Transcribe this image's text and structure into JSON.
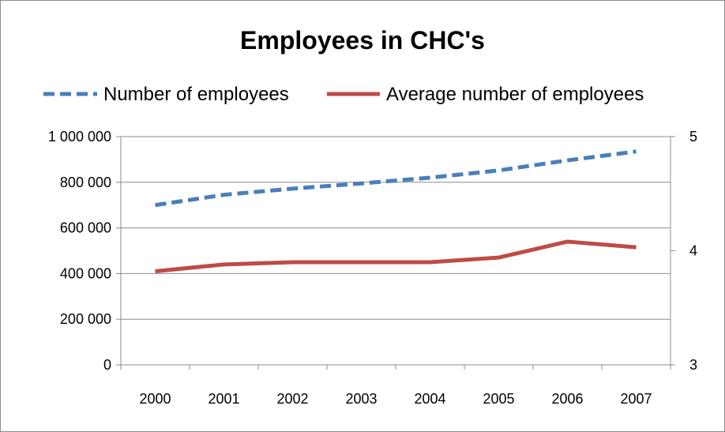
{
  "chart_data": {
    "type": "line",
    "title": "Employees in CHC's",
    "categories": [
      "2000",
      "2001",
      "2002",
      "2003",
      "2004",
      "2005",
      "2006",
      "2007"
    ],
    "series": [
      {
        "name": "Number of employees",
        "axis": "left",
        "style": "dashed",
        "color": "#4a7ebb",
        "values": [
          700000,
          745000,
          772000,
          795000,
          820000,
          852000,
          896000,
          935000
        ]
      },
      {
        "name": "Average number of employees",
        "axis": "right",
        "style": "solid",
        "color": "#be4b48",
        "values": [
          3.82,
          3.88,
          3.9,
          3.9,
          3.9,
          3.94,
          4.08,
          4.03
        ]
      }
    ],
    "left_axis": {
      "ylim": [
        0,
        1000000
      ],
      "ticks": [
        0,
        200000,
        400000,
        600000,
        800000,
        1000000
      ],
      "tick_labels": [
        "0",
        "200 000",
        "400 000",
        "600 000",
        "800 000",
        "1 000 000"
      ]
    },
    "right_axis": {
      "ylim": [
        3,
        5
      ],
      "ticks": [
        3,
        4,
        5
      ],
      "tick_labels": [
        "3",
        "4",
        "5"
      ]
    },
    "grid": true,
    "legend_position": "top"
  }
}
